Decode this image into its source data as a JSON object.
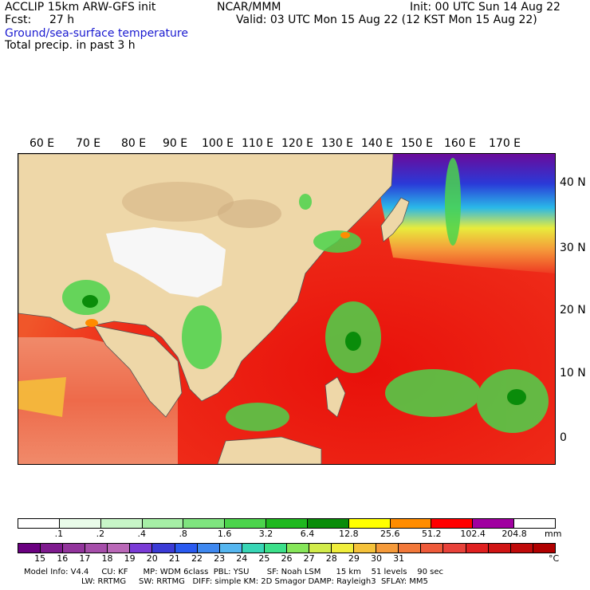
{
  "header": {
    "model": "ACCLIP 15km ARW-GFS init",
    "center": "NCAR/MMM",
    "init": "Init: 00 UTC Sun 14 Aug 22",
    "fcst_label": "Fcst:",
    "fcst_value": "27 h",
    "valid": "Valid: 03 UTC Mon 15 Aug 22 (12 KST Mon 15 Aug 22)",
    "field1": "Ground/sea-surface temperature",
    "field2": "Total precip. in past 3 h"
  },
  "map": {
    "lon_labels": [
      "60 E",
      "70 E",
      "80 E",
      "90 E",
      "100 E",
      "110 E",
      "120 E",
      "130 E",
      "140 E",
      "150 E",
      "160 E",
      "170 E"
    ],
    "lat_labels": [
      "40 N",
      "30 N",
      "20 N",
      "10 N",
      "0"
    ]
  },
  "precip_bar": {
    "unit": "mm",
    "ticks": [
      ".1",
      ".2",
      ".4",
      ".8",
      "1.6",
      "3.2",
      "6.4",
      "12.8",
      "25.6",
      "51.2",
      "102.4",
      "204.8"
    ],
    "colors": [
      "#ffffff",
      "#e9fbe9",
      "#c8f5c8",
      "#a6efa6",
      "#7fe47f",
      "#4cd44c",
      "#1fb81f",
      "#0a8c0a",
      "#ffff00",
      "#ff8c00",
      "#ff0000",
      "#a000a0",
      "#ffffff"
    ]
  },
  "temp_bar": {
    "unit": "°C",
    "ticks": [
      "15",
      "16",
      "17",
      "18",
      "19",
      "20",
      "21",
      "22",
      "23",
      "24",
      "25",
      "26",
      "27",
      "28",
      "29",
      "30",
      "31"
    ],
    "colors": [
      "#6a0080",
      "#7e1a8e",
      "#92349c",
      "#a64eaa",
      "#ba68b8",
      "#7a3bd6",
      "#3b3bd6",
      "#2a5af0",
      "#3f88f0",
      "#55b6f0",
      "#38d6b6",
      "#3ce08a",
      "#86e65a",
      "#d2ec4a",
      "#f0ee3c",
      "#f5c23a",
      "#f59a3a",
      "#f2783a",
      "#ee5a3a",
      "#e8423a",
      "#e02020",
      "#d01414",
      "#c00a0a",
      "#b00000"
    ]
  },
  "footer": {
    "line1": "Model Info: V4.4     CU: KF      MP: WDM 6class  PBL: YSU       SF: Noah LSM      15 km    51 levels    90 sec",
    "line2": "LW: RRTMG     SW: RRTMG   DIFF: simple KM: 2D Smagor DAMP: Rayleigh3  SFLAY: MM5"
  }
}
